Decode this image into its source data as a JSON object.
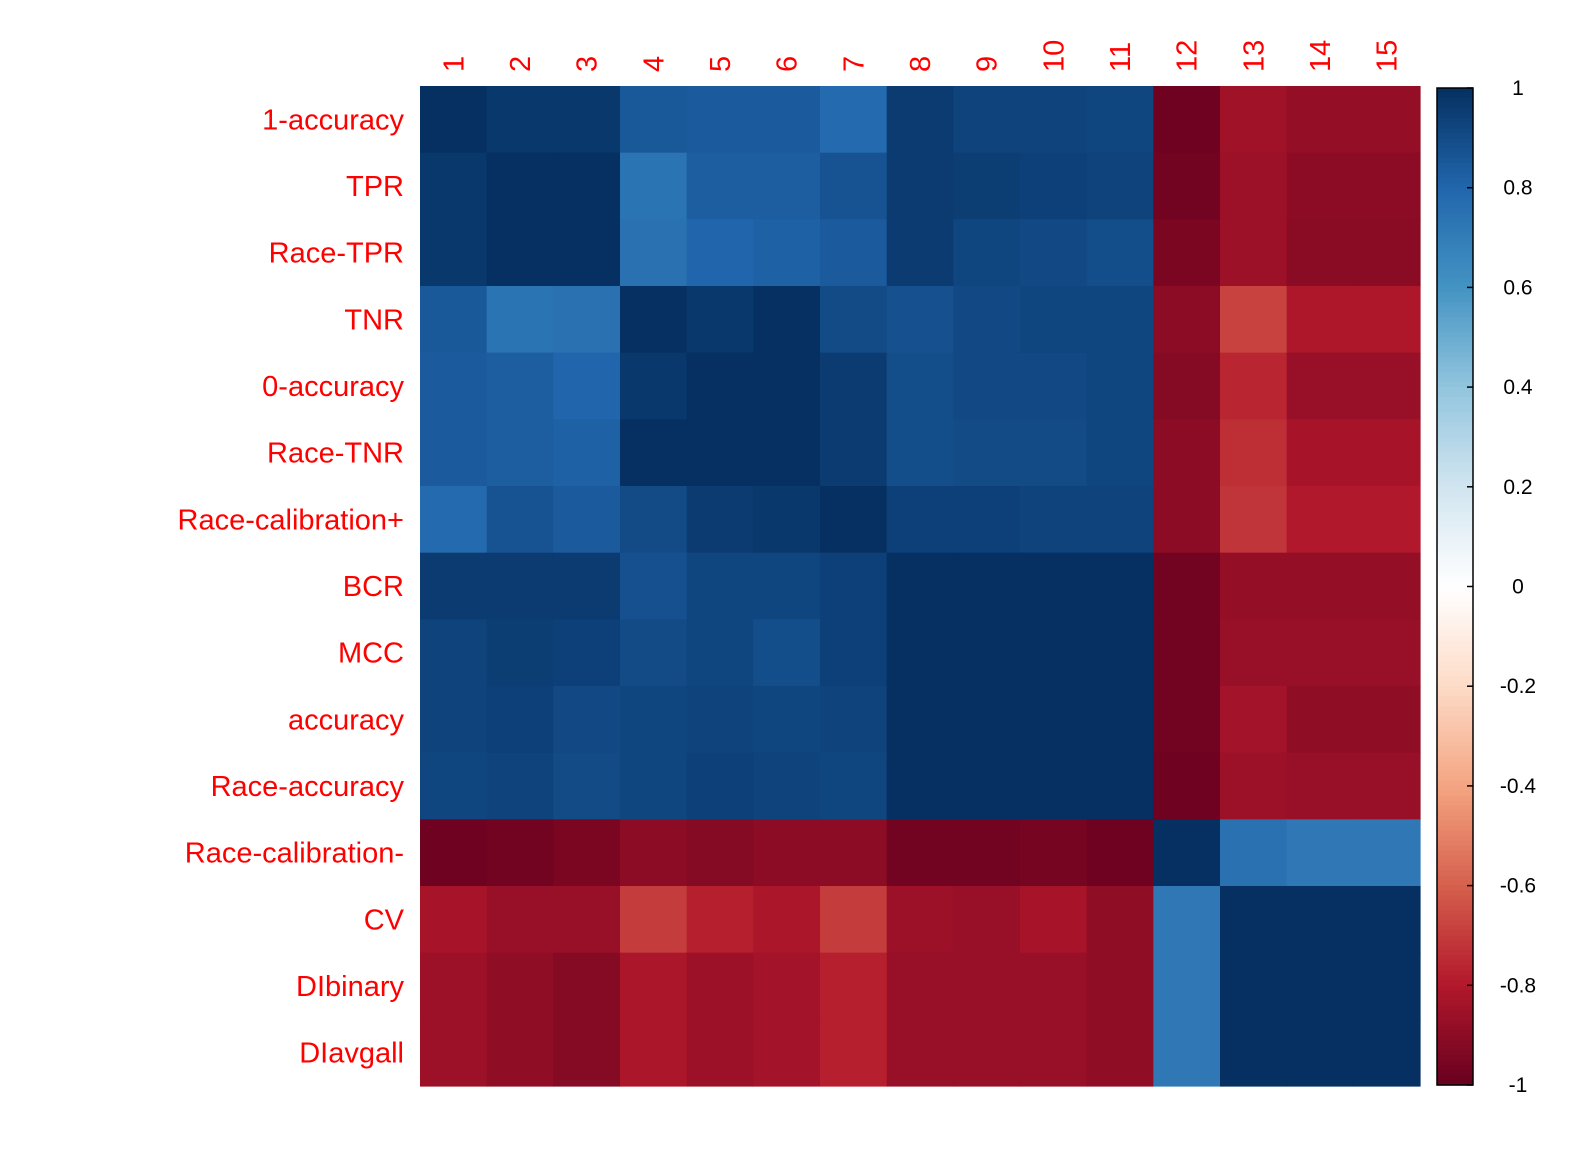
{
  "chart_data": {
    "type": "heatmap",
    "title": "",
    "xlabel": "",
    "ylabel": "",
    "row_labels": [
      "1-accuracy",
      "TPR",
      "Race-TPR",
      "TNR",
      "0-accuracy",
      "Race-TNR",
      "Race-calibration+",
      "BCR",
      "MCC",
      "accuracy",
      "Race-accuracy",
      "Race-calibration-",
      "CV",
      "DIbinary",
      "DIavgall"
    ],
    "col_labels": [
      "1",
      "2",
      "3",
      "4",
      "5",
      "6",
      "7",
      "8",
      "9",
      "10",
      "11",
      "12",
      "13",
      "14",
      "15"
    ],
    "label_color": "#FF0000",
    "values": [
      [
        1.0,
        0.97,
        0.97,
        0.85,
        0.84,
        0.84,
        0.78,
        0.96,
        0.93,
        0.93,
        0.92,
        -0.98,
        -0.85,
        -0.88,
        -0.88
      ],
      [
        0.97,
        1.0,
        1.0,
        0.74,
        0.83,
        0.83,
        0.87,
        0.96,
        0.95,
        0.94,
        0.93,
        -0.97,
        -0.86,
        -0.9,
        -0.9
      ],
      [
        0.97,
        1.0,
        1.0,
        0.75,
        0.8,
        0.82,
        0.84,
        0.96,
        0.92,
        0.91,
        0.89,
        -0.95,
        -0.86,
        -0.91,
        -0.91
      ],
      [
        0.85,
        0.74,
        0.75,
        1.0,
        0.97,
        1.0,
        0.9,
        0.88,
        0.91,
        0.92,
        0.92,
        -0.9,
        -0.68,
        -0.81,
        -0.81
      ],
      [
        0.84,
        0.83,
        0.8,
        0.97,
        1.0,
        1.0,
        0.96,
        0.89,
        0.91,
        0.91,
        0.92,
        -0.92,
        -0.76,
        -0.87,
        -0.87
      ],
      [
        0.84,
        0.83,
        0.82,
        1.0,
        1.0,
        1.0,
        0.96,
        0.89,
        0.9,
        0.9,
        0.92,
        -0.9,
        -0.74,
        -0.83,
        -0.83
      ],
      [
        0.78,
        0.87,
        0.84,
        0.9,
        0.96,
        0.97,
        1.0,
        0.94,
        0.94,
        0.93,
        0.93,
        -0.9,
        -0.72,
        -0.8,
        -0.8
      ],
      [
        0.96,
        0.96,
        0.96,
        0.88,
        0.92,
        0.92,
        0.94,
        1.0,
        1.0,
        1.0,
        1.0,
        -0.97,
        -0.88,
        -0.88,
        -0.88
      ],
      [
        0.93,
        0.95,
        0.94,
        0.9,
        0.92,
        0.89,
        0.94,
        1.0,
        1.0,
        1.0,
        1.0,
        -0.97,
        -0.87,
        -0.87,
        -0.87
      ],
      [
        0.93,
        0.94,
        0.91,
        0.92,
        0.93,
        0.92,
        0.93,
        1.0,
        1.0,
        1.0,
        1.0,
        -0.97,
        -0.84,
        -0.89,
        -0.89
      ],
      [
        0.92,
        0.93,
        0.9,
        0.92,
        0.94,
        0.93,
        0.92,
        1.0,
        1.0,
        1.0,
        1.0,
        -0.98,
        -0.86,
        -0.87,
        -0.87
      ],
      [
        -0.98,
        -0.97,
        -0.95,
        -0.9,
        -0.92,
        -0.9,
        -0.9,
        -0.97,
        -0.97,
        -0.96,
        -0.98,
        1.0,
        0.75,
        0.72,
        0.72
      ],
      [
        -0.83,
        -0.87,
        -0.87,
        -0.7,
        -0.78,
        -0.82,
        -0.7,
        -0.86,
        -0.87,
        -0.83,
        -0.89,
        0.72,
        1.0,
        1.0,
        1.0
      ],
      [
        -0.86,
        -0.89,
        -0.92,
        -0.82,
        -0.86,
        -0.84,
        -0.78,
        -0.87,
        -0.87,
        -0.87,
        -0.89,
        0.72,
        1.0,
        1.0,
        1.0
      ],
      [
        -0.86,
        -0.89,
        -0.92,
        -0.82,
        -0.86,
        -0.84,
        -0.78,
        -0.87,
        -0.87,
        -0.87,
        -0.89,
        0.72,
        1.0,
        1.0,
        1.0
      ]
    ],
    "color_scale": {
      "min": -1,
      "max": 1,
      "ticks": [
        "1",
        "0.8",
        "0.6",
        "0.4",
        "0.2",
        "0",
        "-0.2",
        "-0.4",
        "-0.6",
        "-0.8",
        "-1"
      ],
      "palette": [
        "#67001F",
        "#B2182B",
        "#D6604D",
        "#F4A582",
        "#FDDBC7",
        "#FFFFFF",
        "#D1E5F0",
        "#92C5DE",
        "#4393C3",
        "#2166AC",
        "#053061"
      ]
    },
    "legend_placement": "right",
    "grid": false
  }
}
